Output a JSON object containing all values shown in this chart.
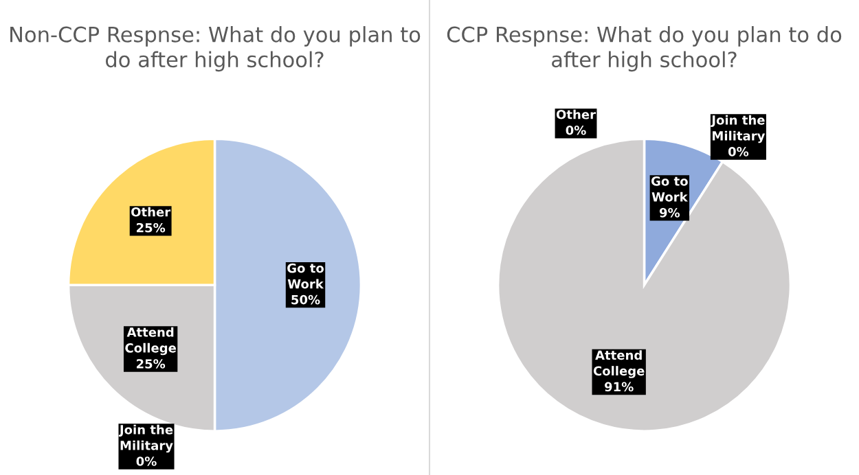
{
  "chart_data": [
    {
      "type": "pie",
      "title": "Non-CCP Respnse: What do you plan to do after high school?",
      "categories": [
        "Go to Work",
        "Join the Military",
        "Attend College",
        "Other"
      ],
      "values": [
        50,
        0,
        25,
        25
      ],
      "colors": [
        "#b4c7e7",
        "#a5a5a5",
        "#d0cece",
        "#ffd966"
      ],
      "value_labels": [
        "50%",
        "0%",
        "25%",
        "25%"
      ]
    },
    {
      "type": "pie",
      "title": "CCP Respnse: What do you plan to do after high school?",
      "categories": [
        "Go to Work",
        "Join the Military",
        "Attend College",
        "Other"
      ],
      "values": [
        9,
        0,
        91,
        0
      ],
      "colors": [
        "#8faadc",
        "#a5a5a5",
        "#d0cece",
        "#ffd966"
      ],
      "value_labels": [
        "9%",
        "0%",
        "91%",
        "0%"
      ]
    }
  ]
}
